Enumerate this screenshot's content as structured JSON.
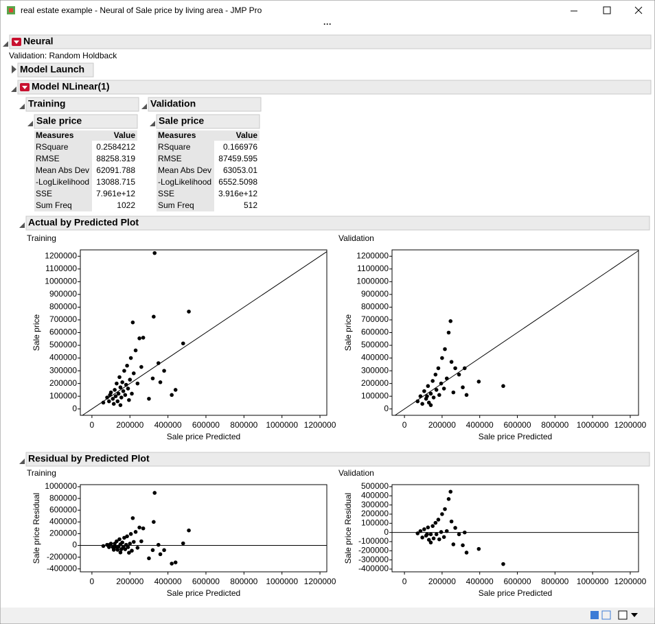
{
  "window": {
    "title": "real estate example - Neural of Sale price by living area - JMP Pro"
  },
  "report": {
    "title": "Neural",
    "validation": "Validation: Random Holdback",
    "model_launch": "Model Launch",
    "model": "Model NLinear(1)",
    "fit_tables": [
      {
        "title": "Training",
        "subtitle": "Sale price",
        "header": [
          "Measures",
          "Value"
        ],
        "rows": [
          [
            "RSquare",
            "0.2584212"
          ],
          [
            "RMSE",
            "88258.319"
          ],
          [
            "Mean Abs Dev",
            "62091.788"
          ],
          [
            "-LogLikelihood",
            "13088.715"
          ],
          [
            "SSE",
            "7.961e+12"
          ],
          [
            "Sum Freq",
            "1022"
          ]
        ]
      },
      {
        "title": "Validation",
        "subtitle": "Sale price",
        "header": [
          "Measures",
          "Value"
        ],
        "rows": [
          [
            "RSquare",
            "0.166976"
          ],
          [
            "RMSE",
            "87459.595"
          ],
          [
            "Mean Abs Dev",
            "63053.01"
          ],
          [
            "-LogLikelihood",
            "6552.5098"
          ],
          [
            "SSE",
            "3.916e+12"
          ],
          [
            "Sum Freq",
            "512"
          ]
        ]
      }
    ],
    "actual_by_predicted": "Actual by Predicted Plot",
    "residual_by_predicted": "Residual by Predicted Plot"
  },
  "chart_data": [
    {
      "type": "scatter",
      "title": "Training",
      "xlabel": "Sale price Predicted",
      "ylabel": "Sale price",
      "reference": "diagonal",
      "color": "#000000",
      "xlim": [
        -61000,
        1236000
      ],
      "xticks": [
        0,
        200000,
        400000,
        600000,
        800000,
        1000000,
        1200000
      ],
      "ylim": [
        -50000,
        1250000
      ],
      "yticks": [
        0,
        100000,
        200000,
        300000,
        400000,
        500000,
        600000,
        700000,
        800000,
        900000,
        1000000,
        1100000,
        1200000
      ],
      "x": [
        60000,
        80000,
        90000,
        100000,
        110000,
        120000,
        125000,
        130000,
        135000,
        140000,
        145000,
        150000,
        155000,
        160000,
        165000,
        170000,
        175000,
        180000,
        185000,
        190000,
        200000,
        205000,
        210000,
        220000,
        230000,
        240000,
        250000,
        260000,
        270000,
        215000,
        325000,
        330000,
        510000,
        480000,
        350000,
        380000,
        440000,
        420000,
        320000,
        360000,
        300000,
        115000,
        95000,
        150000,
        195000
      ],
      "values": [
        50000,
        90000,
        60000,
        130000,
        80000,
        150000,
        100000,
        200000,
        60000,
        120000,
        250000,
        170000,
        90000,
        210000,
        140000,
        300000,
        110000,
        190000,
        340000,
        160000,
        230000,
        400000,
        120000,
        280000,
        460000,
        200000,
        555000,
        330000,
        560000,
        680000,
        725000,
        1225000,
        765000,
        515000,
        360000,
        300000,
        150000,
        110000,
        240000,
        210000,
        80000,
        40000,
        110000,
        30000,
        70000
      ]
    },
    {
      "type": "scatter",
      "title": "Validation",
      "xlabel": "Sale price Predicted",
      "ylabel": "Sale price",
      "reference": "diagonal",
      "color": "#000000",
      "xlim": [
        -66000,
        1244000
      ],
      "xticks": [
        0,
        200000,
        400000,
        600000,
        800000,
        1000000,
        1200000
      ],
      "ylim": [
        -50000,
        1250000
      ],
      "yticks": [
        0,
        100000,
        200000,
        300000,
        400000,
        500000,
        600000,
        700000,
        800000,
        900000,
        1000000,
        1100000,
        1200000
      ],
      "x": [
        70000,
        85000,
        95000,
        105000,
        115000,
        125000,
        130000,
        140000,
        150000,
        155000,
        165000,
        170000,
        180000,
        185000,
        195000,
        200000,
        210000,
        215000,
        225000,
        235000,
        245000,
        250000,
        270000,
        290000,
        320000,
        330000,
        310000,
        395000,
        525000,
        260000,
        140000,
        120000
      ],
      "values": [
        60000,
        100000,
        40000,
        140000,
        80000,
        180000,
        50000,
        120000,
        220000,
        90000,
        270000,
        150000,
        320000,
        110000,
        200000,
        400000,
        160000,
        470000,
        240000,
        600000,
        690000,
        370000,
        320000,
        270000,
        320000,
        110000,
        170000,
        215000,
        180000,
        130000,
        30000,
        100000
      ]
    },
    {
      "type": "scatter",
      "title": "Training",
      "xlabel": "Sale price Predicted",
      "ylabel": "Sale price Residual",
      "reference": "zero",
      "color": "#000000",
      "xlim": [
        -61000,
        1236000
      ],
      "xticks": [
        0,
        200000,
        400000,
        600000,
        800000,
        1000000,
        1200000
      ],
      "ylim": [
        -450000,
        1035000
      ],
      "yticks": [
        -400000,
        -200000,
        0,
        200000,
        400000,
        600000,
        800000,
        1000000
      ],
      "x": [
        60000,
        80000,
        90000,
        100000,
        110000,
        120000,
        125000,
        130000,
        135000,
        140000,
        145000,
        150000,
        155000,
        160000,
        165000,
        170000,
        175000,
        180000,
        185000,
        190000,
        200000,
        205000,
        210000,
        220000,
        230000,
        240000,
        250000,
        260000,
        270000,
        215000,
        325000,
        330000,
        510000,
        480000,
        350000,
        380000,
        440000,
        420000,
        320000,
        360000,
        300000,
        115000,
        95000,
        150000,
        195000
      ],
      "values": [
        -10000,
        10000,
        -30000,
        30000,
        -30000,
        30000,
        -25000,
        70000,
        -75000,
        -20000,
        105000,
        20000,
        -65000,
        50000,
        -25000,
        130000,
        -65000,
        10000,
        155000,
        -30000,
        30000,
        195000,
        -90000,
        60000,
        230000,
        -40000,
        305000,
        70000,
        290000,
        465000,
        400000,
        895000,
        255000,
        35000,
        10000,
        -80000,
        -290000,
        -310000,
        -80000,
        -150000,
        -220000,
        -75000,
        15000,
        -120000,
        -125000
      ]
    },
    {
      "type": "scatter",
      "title": "Validation",
      "xlabel": "Sale price Predicted",
      "ylabel": "Sale price Residual",
      "reference": "zero",
      "color": "#000000",
      "xlim": [
        -66000,
        1244000
      ],
      "xticks": [
        0,
        200000,
        400000,
        600000,
        800000,
        1000000,
        1200000
      ],
      "ylim": [
        -430000,
        522000
      ],
      "yticks": [
        -400000,
        -300000,
        -200000,
        -100000,
        0,
        100000,
        200000,
        300000,
        400000,
        500000
      ],
      "x": [
        70000,
        85000,
        95000,
        105000,
        115000,
        125000,
        130000,
        140000,
        150000,
        155000,
        165000,
        170000,
        180000,
        185000,
        195000,
        200000,
        210000,
        215000,
        225000,
        235000,
        245000,
        250000,
        270000,
        290000,
        320000,
        330000,
        310000,
        395000,
        525000,
        260000,
        140000,
        120000
      ],
      "values": [
        -10000,
        15000,
        -55000,
        35000,
        -35000,
        55000,
        -80000,
        -20000,
        70000,
        -65000,
        105000,
        -20000,
        140000,
        -75000,
        5000,
        200000,
        -50000,
        255000,
        15000,
        365000,
        445000,
        120000,
        50000,
        -20000,
        0,
        -220000,
        -140000,
        -180000,
        -345000,
        -130000,
        -110000,
        -20000
      ]
    }
  ]
}
